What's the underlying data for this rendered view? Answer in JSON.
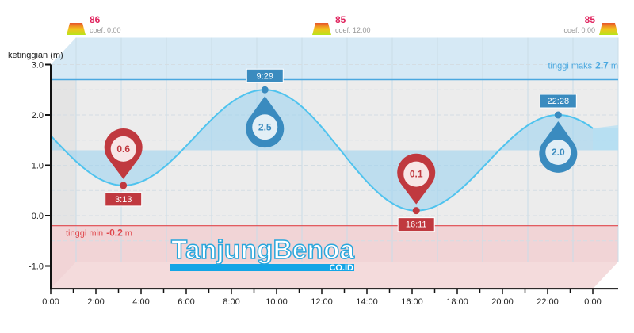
{
  "chart_data": {
    "type": "line",
    "ylabel": "ketinggian (m)",
    "xlabel": "",
    "xlim": [
      0,
      24
    ],
    "ylim": [
      -1.45,
      3.0
    ],
    "x_ticks": [
      "0:00",
      "2:00",
      "4:00",
      "6:00",
      "8:00",
      "10:00",
      "12:00",
      "14:00",
      "16:00",
      "18:00",
      "20:00",
      "22:00",
      "0:00"
    ],
    "y_ticks": [
      "3.0",
      "2.0",
      "1.0",
      "0.0",
      "-1.0"
    ],
    "grid": true,
    "series": [
      {
        "points": [
          {
            "time": "0:00",
            "x": 0,
            "y": 1.58
          },
          {
            "time": "3:13",
            "x": 3.217,
            "y": 0.6,
            "type": "low"
          },
          {
            "time": "9:29",
            "x": 9.483,
            "y": 2.5,
            "type": "high"
          },
          {
            "time": "16:11",
            "x": 16.183,
            "y": 0.1,
            "type": "low"
          },
          {
            "time": "22:28",
            "x": 22.467,
            "y": 2.0,
            "type": "high"
          },
          {
            "time": "0:00",
            "x": 24,
            "y": 1.4
          }
        ]
      }
    ],
    "extremes": [
      {
        "time": "3:13",
        "value": "0.6",
        "type": "low"
      },
      {
        "time": "9:29",
        "value": "2.5",
        "type": "high"
      },
      {
        "time": "16:11",
        "value": "0.1",
        "type": "low"
      },
      {
        "time": "22:28",
        "value": "2.0",
        "type": "high"
      }
    ],
    "mean_level": 1.3,
    "max_line": {
      "value": 2.7,
      "prefix": "tinggi maks",
      "value_label": "2.7",
      "unit": "m"
    },
    "min_line": {
      "value": -0.2,
      "prefix": "tinggi min",
      "value_label": "-0.2",
      "unit": "m"
    },
    "coefficients": [
      {
        "value": "86",
        "label": "coef. 0:00"
      },
      {
        "value": "85",
        "label": "coef. 12:00"
      },
      {
        "value": "85",
        "label": "coef. 0:00"
      }
    ],
    "colors": {
      "high": "#3a8bbf",
      "low": "#c0393f",
      "curve": "#4fc3ee",
      "max": "#4aa8e0",
      "min": "#e0474c",
      "coef": "#e0245e"
    }
  },
  "watermark": {
    "name": "TanjungBenoa",
    "domain": "CO.ID"
  }
}
